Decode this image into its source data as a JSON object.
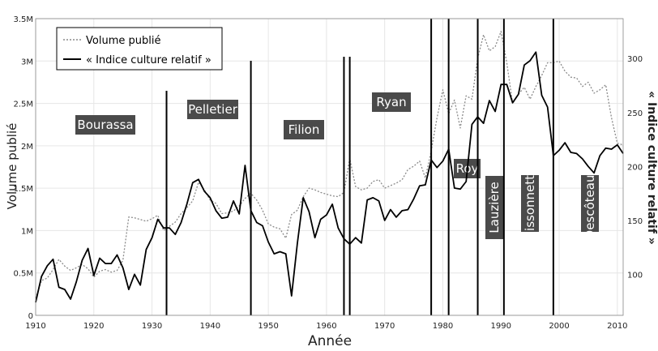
{
  "chart_data": {
    "type": "line",
    "xlabel": "Année",
    "ylabel": "Volume publié",
    "y2label": "« Indice culture relatif »",
    "xlim": [
      1910,
      2011
    ],
    "ylim": [
      0,
      3500000
    ],
    "y2lim": [
      62,
      337
    ],
    "x_ticks": [
      1910,
      1920,
      1930,
      1940,
      1950,
      1960,
      1970,
      1980,
      1990,
      2000,
      2010
    ],
    "y_ticks": [
      {
        "value": 0,
        "label": "0"
      },
      {
        "value": 500000,
        "label": "0.5M"
      },
      {
        "value": 1000000,
        "label": "1M"
      },
      {
        "value": 1500000,
        "label": "1.5M"
      },
      {
        "value": 2000000,
        "label": "2M"
      },
      {
        "value": 2500000,
        "label": "2.5M"
      },
      {
        "value": 3000000,
        "label": "3M"
      },
      {
        "value": 3500000,
        "label": "3.5M"
      }
    ],
    "y2_ticks": [
      100,
      150,
      200,
      250,
      300
    ],
    "grid": true,
    "legend_position": "top-left",
    "series": [
      {
        "name": "Volume publié",
        "style": "dotted",
        "color": "#8a8a8a",
        "axis": "left",
        "x": [
          1910,
          1911,
          1912,
          1913,
          1914,
          1915,
          1916,
          1917,
          1918,
          1919,
          1920,
          1921,
          1922,
          1923,
          1924,
          1925,
          1926,
          1927,
          1928,
          1929,
          1930,
          1931,
          1932,
          1933,
          1934,
          1935,
          1936,
          1937,
          1938,
          1939,
          1940,
          1941,
          1942,
          1943,
          1944,
          1945,
          1946,
          1947,
          1948,
          1949,
          1950,
          1951,
          1952,
          1953,
          1954,
          1955,
          1956,
          1957,
          1958,
          1959,
          1960,
          1961,
          1962,
          1963,
          1964,
          1965,
          1966,
          1967,
          1968,
          1969,
          1970,
          1971,
          1972,
          1973,
          1974,
          1975,
          1976,
          1977,
          1978,
          1979,
          1980,
          1981,
          1982,
          1983,
          1984,
          1985,
          1986,
          1987,
          1988,
          1989,
          1990,
          1991,
          1992,
          1993,
          1994,
          1995,
          1996,
          1997,
          1998,
          1999,
          2000,
          2001,
          2002,
          2003,
          2004,
          2005,
          2006,
          2007,
          2008,
          2009,
          2010,
          2011
        ],
        "values": [
          200000,
          410000,
          440000,
          540000,
          660000,
          580000,
          530000,
          560000,
          600000,
          550000,
          450000,
          520000,
          540000,
          510000,
          530000,
          650000,
          1160000,
          1150000,
          1130000,
          1110000,
          1140000,
          1180000,
          1000000,
          1050000,
          1100000,
          1200000,
          1270000,
          1350000,
          1570000,
          1480000,
          1360000,
          1320000,
          1200000,
          1210000,
          1230000,
          1290000,
          1380000,
          1440000,
          1360000,
          1240000,
          1080000,
          1040000,
          1020000,
          910000,
          1190000,
          1240000,
          1400000,
          1500000,
          1480000,
          1450000,
          1430000,
          1410000,
          1400000,
          1450000,
          1850000,
          1520000,
          1480000,
          1500000,
          1580000,
          1600000,
          1500000,
          1530000,
          1560000,
          1600000,
          1720000,
          1760000,
          1820000,
          1620000,
          1940000,
          2330000,
          2660000,
          2380000,
          2540000,
          2210000,
          2590000,
          2550000,
          3030000,
          3310000,
          3120000,
          3170000,
          3350000,
          2980000,
          2500000,
          2610000,
          2690000,
          2550000,
          2700000,
          2830000,
          2980000,
          2980000,
          3000000,
          2880000,
          2810000,
          2800000,
          2700000,
          2750000,
          2620000,
          2660000,
          2720000,
          2330000,
          2030000,
          2010000
        ]
      },
      {
        "name": "« Indice culture relatif »",
        "style": "solid",
        "color": "#000000",
        "axis": "right",
        "x": [
          1910,
          1911,
          1912,
          1913,
          1914,
          1915,
          1916,
          1917,
          1918,
          1919,
          1920,
          1921,
          1922,
          1923,
          1924,
          1925,
          1926,
          1927,
          1928,
          1929,
          1930,
          1931,
          1932,
          1933,
          1934,
          1935,
          1936,
          1937,
          1938,
          1939,
          1940,
          1941,
          1942,
          1943,
          1944,
          1945,
          1946,
          1947,
          1948,
          1949,
          1950,
          1951,
          1952,
          1953,
          1954,
          1955,
          1956,
          1957,
          1958,
          1959,
          1960,
          1961,
          1962,
          1963,
          1964,
          1965,
          1966,
          1967,
          1968,
          1969,
          1970,
          1971,
          1972,
          1973,
          1974,
          1975,
          1976,
          1977,
          1978,
          1979,
          1980,
          1981,
          1982,
          1983,
          1984,
          1985,
          1986,
          1987,
          1988,
          1989,
          1990,
          1991,
          1992,
          1993,
          1994,
          1995,
          1996,
          1997,
          1998,
          1999,
          2000,
          2001,
          2002,
          2003,
          2004,
          2005,
          2006,
          2007,
          2008,
          2009,
          2010,
          2011
        ],
        "values": [
          74,
          98,
          108,
          114,
          88,
          86,
          77,
          93,
          113,
          124,
          99,
          115,
          110,
          110,
          118,
          106,
          86,
          100,
          90,
          123,
          134,
          151,
          143,
          143,
          137,
          148,
          165,
          185,
          188,
          177,
          171,
          159,
          152,
          153,
          168,
          156,
          201,
          159,
          148,
          145,
          130,
          119,
          121,
          119,
          80,
          129,
          171,
          158,
          134,
          151,
          155,
          165,
          143,
          133,
          128,
          134,
          129,
          169,
          171,
          168,
          150,
          160,
          153,
          159,
          160,
          170,
          182,
          183,
          206,
          199,
          205,
          216,
          180,
          179,
          186,
          239,
          246,
          240,
          261,
          251,
          276,
          276,
          259,
          267,
          294,
          298,
          306,
          266,
          255,
          210,
          215,
          222,
          213,
          212,
          207,
          200,
          194,
          210,
          217,
          216,
          220,
          212
        ]
      }
    ],
    "eras": [
      {
        "label": "Bourassa"
      },
      {
        "label": "Pelletier"
      },
      {
        "label": "Filion"
      },
      {
        "label": "Ryan"
      },
      {
        "label": "Roy"
      },
      {
        "label": "Lauzière"
      },
      {
        "label": "Bissonnette"
      },
      {
        "label": "Descôteaux"
      }
    ],
    "era_boundaries": [
      1932.5,
      1947,
      1963,
      1964,
      1978,
      1981,
      1986,
      1990.5,
      1999
    ]
  }
}
